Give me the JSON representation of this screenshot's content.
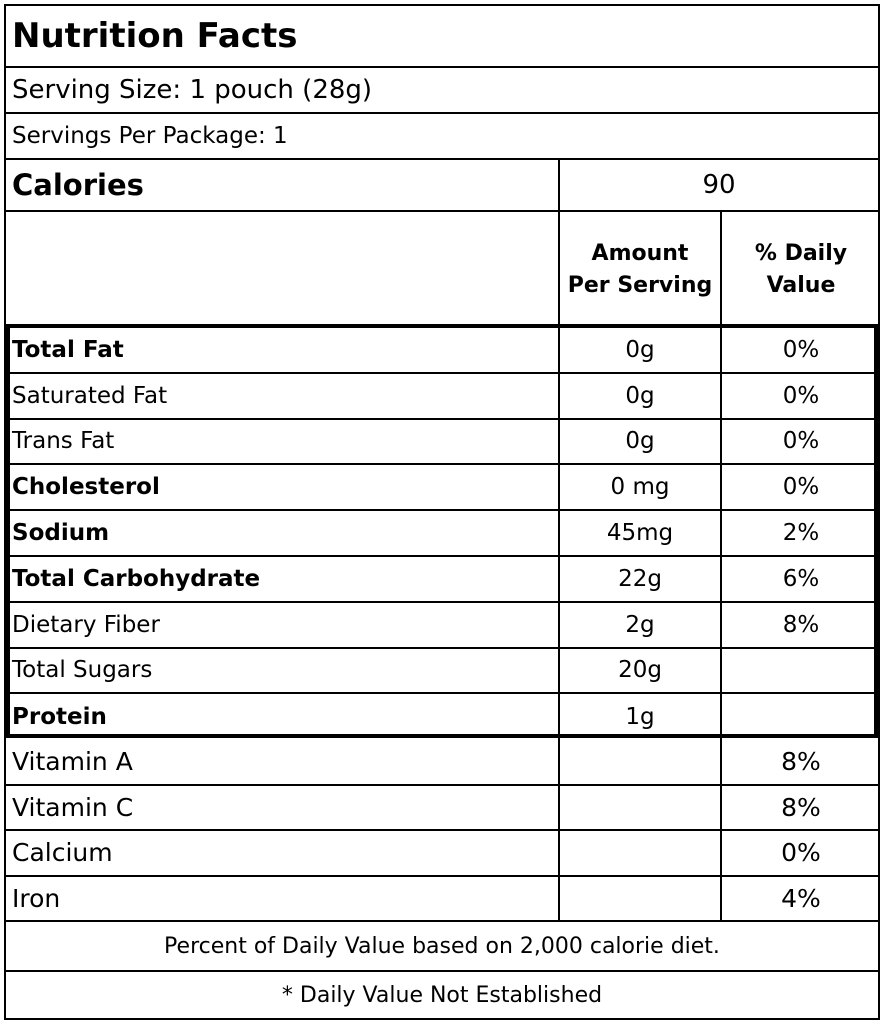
{
  "title": "Nutrition Facts",
  "serving_size": "Serving Size: 1 pouch (28g)",
  "servings_per_package": "Servings Per Package: 1",
  "calories": {
    "label": "Calories",
    "value": "90"
  },
  "headers": {
    "amount_line1": "Amount",
    "amount_line2": "Per Serving",
    "dv_line1": "% Daily",
    "dv_line2": "Value"
  },
  "nutrients": [
    {
      "name": "Total Fat",
      "amount": "0g",
      "dv": "0%",
      "bold": true
    },
    {
      "name": "Saturated Fat",
      "amount": "0g",
      "dv": "0%",
      "bold": false
    },
    {
      "name": "Trans Fat",
      "amount": "0g",
      "dv": "0%",
      "bold": false
    },
    {
      "name": "Cholesterol",
      "amount": "0 mg",
      "dv": "0%",
      "bold": true
    },
    {
      "name": "Sodium",
      "amount": "45mg",
      "dv": "2%",
      "bold": true
    },
    {
      "name": "Total Carbohydrate",
      "amount": "22g",
      "dv": "6%",
      "bold": true
    },
    {
      "name": "Dietary Fiber",
      "amount": "2g",
      "dv": "8%",
      "bold": false
    },
    {
      "name": "Total Sugars",
      "amount": "20g",
      "dv": "",
      "bold": false
    },
    {
      "name": "Protein",
      "amount": "1g",
      "dv": "",
      "bold": true
    }
  ],
  "vitamins": [
    {
      "name": "Vitamin A",
      "dv": "8%"
    },
    {
      "name": "Vitamin C",
      "dv": "8%"
    },
    {
      "name": "Calcium",
      "dv": "0%"
    },
    {
      "name": "Iron",
      "dv": "4%"
    }
  ],
  "footnotes": {
    "daily_value_basis": "Percent of Daily Value based on 2,000 calorie diet.",
    "not_established": "* Daily Value Not Established"
  }
}
